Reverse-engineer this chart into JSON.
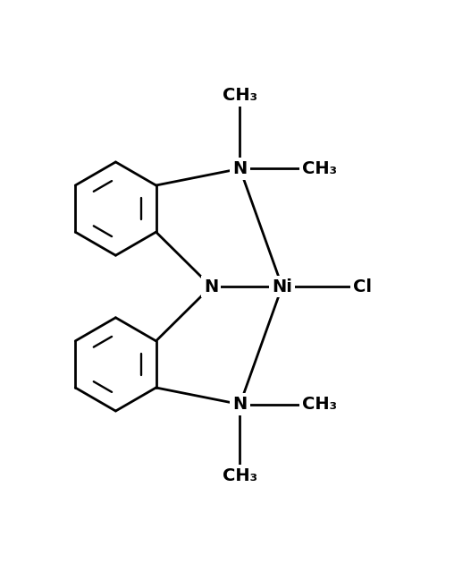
{
  "bg_color": "#ffffff",
  "line_color": "#000000",
  "text_color": "#000000",
  "line_width": 2.0,
  "font_size": 14,
  "figsize": [
    5.27,
    6.4
  ],
  "dpi": 100,
  "xlim": [
    0,
    10.5
  ],
  "ylim": [
    0,
    12.5
  ]
}
